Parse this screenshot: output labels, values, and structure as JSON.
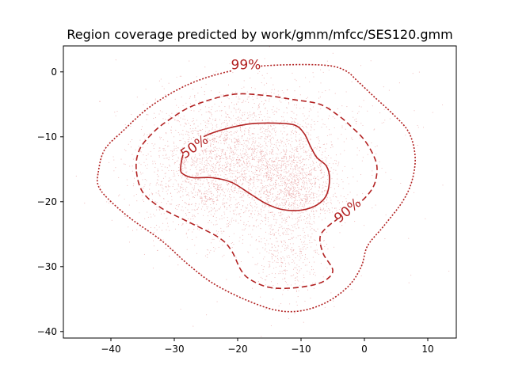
{
  "chart_data": {
    "type": "scatter",
    "title": "Region coverage predicted by work/gmm/mfcc/SES120.gmm",
    "xlabel": "",
    "ylabel": "",
    "xlim": [
      -47.5,
      14.5
    ],
    "ylim": [
      -41,
      4
    ],
    "grid": false,
    "x_ticks": [
      -40,
      -30,
      -20,
      -10,
      0,
      10
    ],
    "y_ticks": [
      0,
      -10,
      -20,
      -30,
      -40
    ],
    "x_tick_labels": [
      "−40",
      "−30",
      "−20",
      "−10",
      "0",
      "10"
    ],
    "y_tick_labels": [
      "0",
      "−10",
      "−20",
      "−30",
      "−40"
    ],
    "colors": {
      "points": "#e08080",
      "contours": "#b22222",
      "axes": "#000000"
    },
    "scatter_clusters": [
      {
        "cx": -20,
        "cy": -14,
        "sx": 6.5,
        "sy": 5.0,
        "n": 1900
      },
      {
        "cx": -11,
        "cy": -18,
        "sx": 3.5,
        "sy": 3.2,
        "n": 900
      },
      {
        "cx": -12,
        "cy": -28,
        "sx": 3.0,
        "sy": 3.5,
        "n": 350
      },
      {
        "cx": -28,
        "cy": -17,
        "sx": 5.0,
        "sy": 5.0,
        "n": 450
      },
      {
        "cx": -15,
        "cy": -8,
        "sx": 9.0,
        "sy": 4.0,
        "n": 400
      },
      {
        "cx": -16,
        "cy": -16,
        "sx": 12.0,
        "sy": 9.0,
        "n": 300
      }
    ],
    "contours": [
      {
        "label": "50%",
        "style": "solid",
        "label_at": [
          -26.8,
          -11.6
        ],
        "label_angle": -35,
        "points": [
          [
            -29,
            -15
          ],
          [
            -28.5,
            -12.5
          ],
          [
            -27,
            -11
          ],
          [
            -25,
            -9.8
          ],
          [
            -22,
            -8.8
          ],
          [
            -18,
            -8
          ],
          [
            -14,
            -7.9
          ],
          [
            -11,
            -8.2
          ],
          [
            -9.5,
            -9.5
          ],
          [
            -8.5,
            -11.5
          ],
          [
            -7.5,
            -13.2
          ],
          [
            -6,
            -14.5
          ],
          [
            -5.5,
            -16.5
          ],
          [
            -6,
            -19
          ],
          [
            -7.5,
            -20.5
          ],
          [
            -10,
            -21.3
          ],
          [
            -13,
            -21.2
          ],
          [
            -15.5,
            -20.3
          ],
          [
            -18,
            -18.8
          ],
          [
            -21,
            -17
          ],
          [
            -24,
            -16.3
          ],
          [
            -27,
            -16.3
          ],
          [
            -28.5,
            -15.8
          ]
        ]
      },
      {
        "label": "90%",
        "style": "dashed",
        "label_at": [
          -2.6,
          -21.4
        ],
        "label_angle": -40,
        "points": [
          [
            -36,
            -15
          ],
          [
            -35.5,
            -12
          ],
          [
            -33.5,
            -9.5
          ],
          [
            -31,
            -7.5
          ],
          [
            -27,
            -5.2
          ],
          [
            -21,
            -3.5
          ],
          [
            -16,
            -3.6
          ],
          [
            -11,
            -4.3
          ],
          [
            -7,
            -5
          ],
          [
            -4,
            -6.8
          ],
          [
            -2,
            -8.5
          ],
          [
            0,
            -10.5
          ],
          [
            1.5,
            -13
          ],
          [
            2,
            -15
          ],
          [
            1.5,
            -17.5
          ],
          [
            0,
            -19.5
          ],
          [
            -2,
            -21
          ],
          [
            -4,
            -22.5
          ],
          [
            -6,
            -24
          ],
          [
            -7,
            -25.5
          ],
          [
            -6.5,
            -28
          ],
          [
            -5,
            -30.5
          ],
          [
            -6,
            -32
          ],
          [
            -8,
            -32.8
          ],
          [
            -11.5,
            -33.3
          ],
          [
            -15,
            -33.2
          ],
          [
            -18,
            -32
          ],
          [
            -19.5,
            -30.5
          ],
          [
            -21,
            -27.5
          ],
          [
            -23,
            -25.5
          ],
          [
            -28,
            -23
          ],
          [
            -32,
            -21
          ],
          [
            -35,
            -18.5
          ]
        ]
      },
      {
        "label": "99%",
        "style": "dotted",
        "label_at": [
          -18.7,
          1.0
        ],
        "label_angle": 0,
        "points": [
          [
            -42,
            -15.5
          ],
          [
            -41,
            -12
          ],
          [
            -38,
            -9
          ],
          [
            -34,
            -5.5
          ],
          [
            -29,
            -2.5
          ],
          [
            -24,
            -0.6
          ],
          [
            -18,
            0.7
          ],
          [
            -12,
            1.1
          ],
          [
            -6,
            1.0
          ],
          [
            -3,
            0.2
          ],
          [
            -1,
            -1.5
          ],
          [
            1.5,
            -3.8
          ],
          [
            4.5,
            -6.5
          ],
          [
            7,
            -9.3
          ],
          [
            8,
            -13
          ],
          [
            7.5,
            -16.8
          ],
          [
            6,
            -20
          ],
          [
            3,
            -23.8
          ],
          [
            0.5,
            -26.8
          ],
          [
            -0.5,
            -30
          ],
          [
            -2.5,
            -33
          ],
          [
            -6,
            -35.5
          ],
          [
            -10,
            -36.8
          ],
          [
            -14,
            -36.7
          ],
          [
            -19,
            -35
          ],
          [
            -24,
            -32.5
          ],
          [
            -28,
            -29.5
          ],
          [
            -32,
            -26
          ],
          [
            -37,
            -22.5
          ],
          [
            -40.5,
            -19.5
          ],
          [
            -42,
            -17.5
          ]
        ]
      }
    ]
  }
}
